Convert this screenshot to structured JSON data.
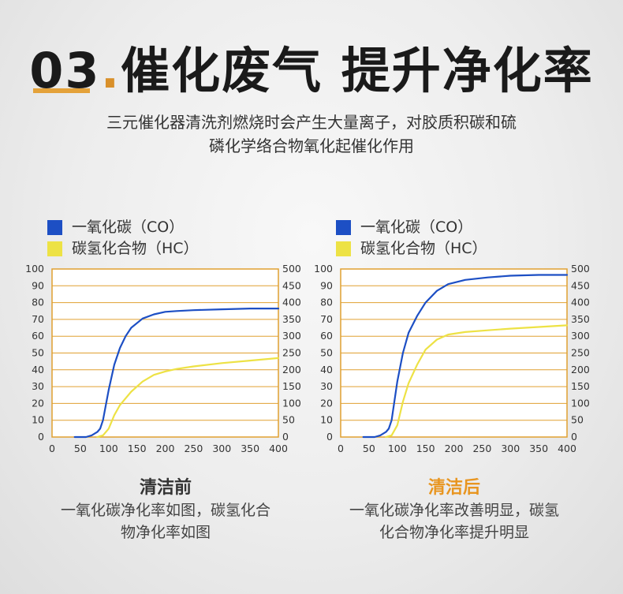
{
  "header": {
    "title_number": "03",
    "title_dot": ".",
    "title_text": "催化废气 提升净化率",
    "subtitle_line1": "三元催化器清洗剂燃烧时会产生大量离子，对胶质积碳和硫",
    "subtitle_line2": "磷化学络合物氧化起催化作用"
  },
  "colors": {
    "co": "#1d4fc4",
    "hc": "#ede245",
    "axis": "#e0a030",
    "accent": "#e4a23a",
    "after_title": "#e8951f"
  },
  "chart_data": [
    {
      "type": "line",
      "caption_title": "清洁前",
      "caption_text": "一氧化碳净化率如图，碳氢化合物净化率如图",
      "caption_line1": "一氧化碳净化率如图，碳氢化合",
      "caption_line2": "物净化率如图",
      "legend": [
        "一氧化碳（CO）",
        "碳氢化合物（HC）"
      ],
      "x_ticks": [
        "0",
        "50",
        "100",
        "150",
        "200",
        "250",
        "300",
        "350",
        "400"
      ],
      "y_left_ticks": [
        "0",
        "10",
        "20",
        "30",
        "40",
        "50",
        "60",
        "70",
        "80",
        "90",
        "100"
      ],
      "y_right_ticks": [
        "0",
        "50",
        "100",
        "150",
        "200",
        "250",
        "300",
        "350",
        "400",
        "450",
        "500"
      ],
      "xlim": [
        0,
        400
      ],
      "ylim_left": [
        0,
        100
      ],
      "ylim_right": [
        0,
        500
      ],
      "series": [
        {
          "name": "一氧化碳（CO）",
          "axis": "left",
          "x": [
            40,
            60,
            70,
            80,
            85,
            90,
            100,
            110,
            120,
            130,
            140,
            160,
            180,
            200,
            220,
            250,
            300,
            350,
            400
          ],
          "y": [
            0,
            0,
            1,
            3,
            5,
            10,
            28,
            43,
            53,
            60,
            65,
            70.5,
            73,
            74.5,
            75,
            75.5,
            76,
            76.5,
            76.5
          ]
        },
        {
          "name": "碳氢化合物（HC）",
          "axis": "left",
          "x": [
            80,
            90,
            100,
            110,
            120,
            140,
            160,
            180,
            200,
            220,
            250,
            300,
            350,
            400
          ],
          "y": [
            0,
            1,
            5,
            13,
            19,
            27,
            33,
            37,
            39,
            40.5,
            42,
            44,
            45.5,
            47
          ]
        }
      ]
    },
    {
      "type": "line",
      "caption_title": "清洁后",
      "caption_text": "一氧化碳净化率改善明显，碳氢化合物净化率提升明显",
      "caption_line1": "一氧化碳净化率改善明显，碳氢",
      "caption_line2": "化合物净化率提升明显",
      "legend": [
        "一氧化碳（CO）",
        "碳氢化合物（HC）"
      ],
      "x_ticks": [
        "0",
        "50",
        "100",
        "150",
        "200",
        "250",
        "300",
        "350",
        "400"
      ],
      "y_left_ticks": [
        "0",
        "10",
        "20",
        "30",
        "40",
        "50",
        "60",
        "70",
        "80",
        "90",
        "100"
      ],
      "y_right_ticks": [
        "0",
        "50",
        "100",
        "150",
        "200",
        "250",
        "300",
        "350",
        "400",
        "450",
        "500"
      ],
      "xlim": [
        0,
        400
      ],
      "ylim_left": [
        0,
        100
      ],
      "ylim_right": [
        0,
        500
      ],
      "series": [
        {
          "name": "一氧化碳（CO）",
          "axis": "left",
          "x": [
            40,
            60,
            70,
            80,
            85,
            90,
            100,
            110,
            120,
            135,
            150,
            170,
            190,
            220,
            260,
            300,
            350,
            400
          ],
          "y": [
            0,
            0,
            1,
            3,
            5,
            10,
            33,
            50,
            62,
            72,
            80,
            87,
            91,
            93.5,
            95,
            96,
            96.5,
            96.5
          ]
        },
        {
          "name": "碳氢化合物（HC）",
          "axis": "left",
          "x": [
            80,
            90,
            100,
            110,
            120,
            135,
            150,
            170,
            190,
            220,
            260,
            300,
            350,
            400
          ],
          "y": [
            0,
            1,
            7,
            21,
            32,
            43,
            52,
            58,
            61,
            62.5,
            63.5,
            64.5,
            65.5,
            66.5
          ]
        }
      ]
    }
  ]
}
